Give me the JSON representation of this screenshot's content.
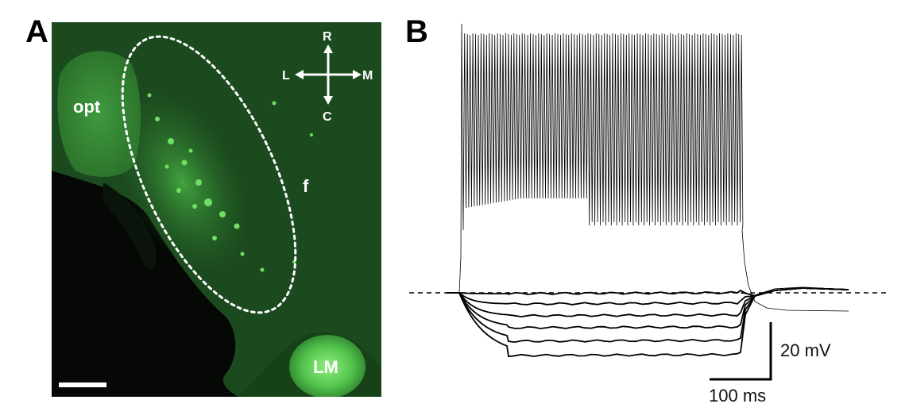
{
  "panels": {
    "a_label": "A",
    "b_label": "B"
  },
  "micrograph": {
    "regions": {
      "opt": "opt",
      "f": "f",
      "lm": "LM"
    },
    "compass": {
      "rostral": "R",
      "caudal": "C",
      "lateral": "L",
      "medial": "M"
    },
    "colors": {
      "tissue": "#1c4a1f",
      "bright": "#5fd35a",
      "dark": "#050805",
      "outline": "#ffffff"
    }
  },
  "recording": {
    "scale_bar": {
      "voltage_label": "20 mV",
      "time_label": "100 ms"
    },
    "colors": {
      "trace": "#000000",
      "baseline": "#000000"
    }
  }
}
